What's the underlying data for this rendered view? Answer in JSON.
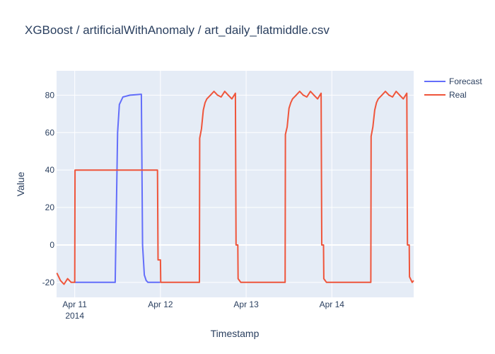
{
  "chart_data": {
    "type": "line",
    "title": "XGBoost / artificialWithAnomaly / art_daily_flatmiddle.csv",
    "xlabel": "Timestamp",
    "ylabel": "Value",
    "xlim": [
      "2014-04-10 18:55",
      "2014-04-14 22:55"
    ],
    "ylim": [
      -28,
      93
    ],
    "grid": true,
    "legend_position": "top-right",
    "x_ticks": [
      {
        "value": "2014-04-11",
        "label": "Apr 11",
        "sublabel": "2014"
      },
      {
        "value": "2014-04-12",
        "label": "Apr 12",
        "sublabel": ""
      },
      {
        "value": "2014-04-13",
        "label": "Apr 13",
        "sublabel": ""
      },
      {
        "value": "2014-04-14",
        "label": "Apr 14",
        "sublabel": ""
      }
    ],
    "y_ticks": [
      -20,
      0,
      20,
      40,
      60,
      80
    ],
    "series": [
      {
        "name": "Forecast",
        "color": "#636efa",
        "x": [
          "2014-04-11 00:00",
          "2014-04-11 11:00",
          "2014-04-11 11:20",
          "2014-04-11 12:00",
          "2014-04-11 12:30",
          "2014-04-11 13:30",
          "2014-04-11 15:30",
          "2014-04-11 18:40",
          "2014-04-11 19:00",
          "2014-04-11 19:30",
          "2014-04-11 20:00",
          "2014-04-11 20:30",
          "2014-04-11 22:00",
          "2014-04-11 23:55"
        ],
        "y": [
          -20,
          -20,
          -20,
          60,
          75,
          79,
          80,
          80.5,
          0,
          -16,
          -19,
          -20,
          -20,
          -20
        ]
      },
      {
        "name": "Real",
        "color": "#ef553b",
        "x": [
          "2014-04-10 19:00",
          "2014-04-10 20:00",
          "2014-04-10 21:00",
          "2014-04-10 22:00",
          "2014-04-10 23:00",
          "2014-04-11 00:00",
          "2014-04-11 00:05",
          "2014-04-11 06:00",
          "2014-04-11 12:00",
          "2014-04-11 18:00",
          "2014-04-11 23:10",
          "2014-04-11 23:20",
          "2014-04-12 00:00",
          "2014-04-12 00:05",
          "2014-04-12 03:00",
          "2014-04-12 06:00",
          "2014-04-12 09:00",
          "2014-04-12 10:55",
          "2014-04-12 11:00",
          "2014-04-12 11:30",
          "2014-04-12 12:00",
          "2014-04-12 12:30",
          "2014-04-12 13:00",
          "2014-04-12 14:00",
          "2014-04-12 15:00",
          "2014-04-12 16:00",
          "2014-04-12 17:00",
          "2014-04-12 18:00",
          "2014-04-12 19:00",
          "2014-04-12 20:00",
          "2014-04-12 21:00",
          "2014-04-12 21:10",
          "2014-04-12 21:40",
          "2014-04-12 21:45",
          "2014-04-12 22:30",
          "2014-04-13 00:00",
          "2014-04-13 03:00",
          "2014-04-13 06:00",
          "2014-04-13 09:00",
          "2014-04-13 10:55",
          "2014-04-13 11:00",
          "2014-04-13 11:30",
          "2014-04-13 12:00",
          "2014-04-13 12:30",
          "2014-04-13 13:00",
          "2014-04-13 14:00",
          "2014-04-13 15:00",
          "2014-04-13 16:00",
          "2014-04-13 17:00",
          "2014-04-13 18:00",
          "2014-04-13 19:00",
          "2014-04-13 20:00",
          "2014-04-13 21:00",
          "2014-04-13 21:10",
          "2014-04-13 21:40",
          "2014-04-13 21:45",
          "2014-04-13 22:30",
          "2014-04-14 00:00",
          "2014-04-14 03:00",
          "2014-04-14 06:00",
          "2014-04-14 09:00",
          "2014-04-14 10:55",
          "2014-04-14 11:00",
          "2014-04-14 11:30",
          "2014-04-14 12:00",
          "2014-04-14 12:30",
          "2014-04-14 13:00",
          "2014-04-14 14:00",
          "2014-04-14 15:00",
          "2014-04-14 16:00",
          "2014-04-14 17:00",
          "2014-04-14 18:00",
          "2014-04-14 19:00",
          "2014-04-14 20:00",
          "2014-04-14 21:00",
          "2014-04-14 21:10",
          "2014-04-14 21:40",
          "2014-04-14 21:45",
          "2014-04-14 22:30",
          "2014-04-14 22:55"
        ],
        "y": [
          -15,
          -19,
          -21,
          -18,
          -20,
          -20,
          40,
          40,
          40,
          40,
          40,
          -8,
          -8,
          -20,
          -20,
          -20,
          -20,
          -20,
          57,
          62,
          72,
          76,
          78,
          80,
          82,
          80,
          79,
          82,
          80,
          78,
          81,
          0,
          0,
          -18,
          -20,
          -20,
          -20,
          -20,
          -20,
          -20,
          59,
          63,
          73,
          76,
          78,
          80,
          82,
          80,
          79,
          82,
          80,
          78,
          81,
          0,
          0,
          -18,
          -20,
          -20,
          -20,
          -20,
          -20,
          -20,
          58,
          63,
          72,
          76,
          78,
          80,
          82,
          80,
          79,
          82,
          80,
          78,
          81,
          0,
          0,
          -17,
          -20,
          -19
        ]
      }
    ]
  }
}
